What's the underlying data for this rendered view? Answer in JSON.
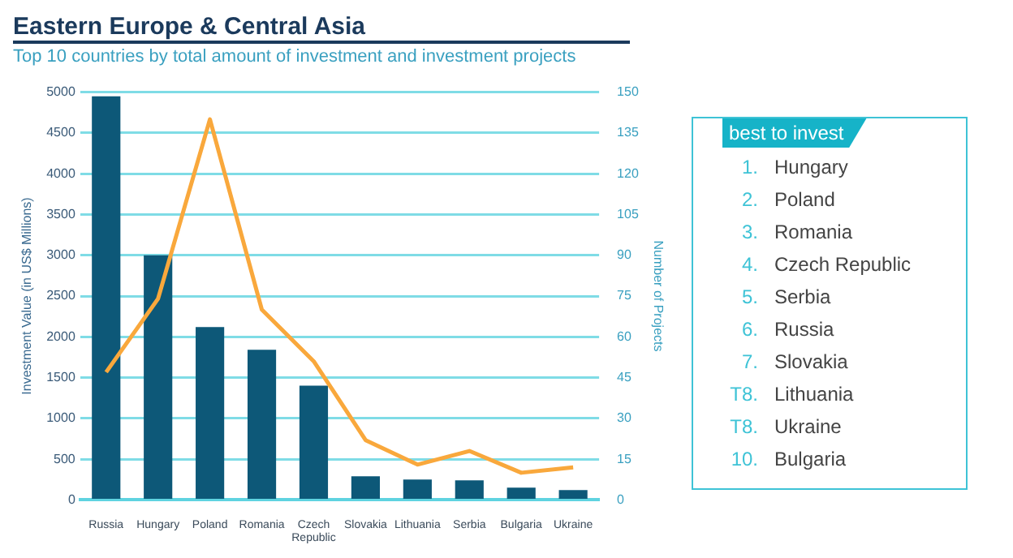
{
  "chart_data": [
    {
      "type": "bar",
      "title": "Eastern Europe & Central Asia",
      "subtitle": "Top 10 countries by total amount of investment and investment projects",
      "ylabel": "Investment Value (in US$ Millions)",
      "y2label": "Number of Projects",
      "categories": [
        "Russia",
        "Hungary",
        "Poland",
        "Romania",
        "Czech Republic",
        "Slovakia",
        "Lithuania",
        "Serbia",
        "Bulgaria",
        "Ukraine"
      ],
      "series": [
        {
          "type": "bar",
          "color": "#0d5878",
          "values": [
            4950,
            3000,
            2120,
            1840,
            1400,
            290,
            250,
            240,
            150,
            120
          ]
        },
        {
          "type": "line",
          "axis": "y2",
          "color": "#f9a83c",
          "values": [
            47,
            74,
            140,
            70,
            51,
            22,
            13,
            18,
            10,
            12
          ]
        }
      ],
      "ylim": [
        0,
        5000
      ],
      "yticks": [
        0,
        500,
        1000,
        1500,
        2000,
        2500,
        3000,
        3500,
        4000,
        4500,
        5000
      ],
      "y2lim": [
        0,
        150
      ],
      "y2ticks": [
        0,
        15,
        30,
        45,
        60,
        75,
        90,
        105,
        120,
        135,
        150
      ],
      "grid": "y",
      "legend": false,
      "marker": "none",
      "line_style": "solid"
    },
    {
      "type": "other",
      "title": "best to invest",
      "annotations": [
        "1. Hungary",
        "2. Poland",
        "3. Romania",
        "4. Czech Republic",
        "5. Serbia",
        "6. Russia",
        "7. Slovakia",
        "T8. Lithuania",
        "T8. Ukraine",
        "10. Bulgaria"
      ]
    }
  ]
}
